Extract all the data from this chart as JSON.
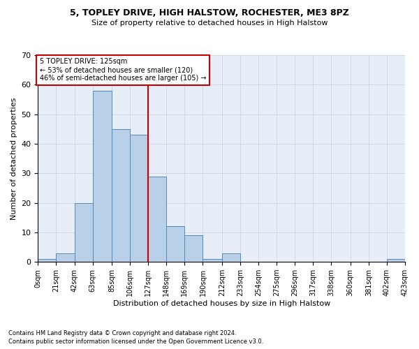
{
  "title1": "5, TOPLEY DRIVE, HIGH HALSTOW, ROCHESTER, ME3 8PZ",
  "title2": "Size of property relative to detached houses in High Halstow",
  "xlabel": "Distribution of detached houses by size in High Halstow",
  "ylabel": "Number of detached properties",
  "footnote1": "Contains HM Land Registry data © Crown copyright and database right 2024.",
  "footnote2": "Contains public sector information licensed under the Open Government Licence v3.0.",
  "annotation_line1": "5 TOPLEY DRIVE: 125sqm",
  "annotation_line2": "← 53% of detached houses are smaller (120)",
  "annotation_line3": "46% of semi-detached houses are larger (105) →",
  "vline_x": 127,
  "bar_color": "#b8d0e8",
  "bar_edge_color": "#5588bb",
  "vline_color": "#cc0000",
  "annotation_box_color": "#cc0000",
  "bin_edges": [
    0,
    21,
    42,
    63,
    85,
    106,
    127,
    148,
    169,
    190,
    212,
    233,
    254,
    275,
    296,
    317,
    338,
    360,
    381,
    402,
    423
  ],
  "bin_labels": [
    "0sqm",
    "21sqm",
    "42sqm",
    "63sqm",
    "85sqm",
    "106sqm",
    "127sqm",
    "148sqm",
    "169sqm",
    "190sqm",
    "212sqm",
    "233sqm",
    "254sqm",
    "275sqm",
    "296sqm",
    "317sqm",
    "338sqm",
    "360sqm",
    "381sqm",
    "402sqm",
    "423sqm"
  ],
  "counts": [
    1,
    3,
    20,
    58,
    45,
    43,
    29,
    12,
    9,
    1,
    3,
    0,
    0,
    0,
    0,
    0,
    0,
    0,
    0,
    1
  ],
  "ylim": [
    0,
    70
  ],
  "yticks": [
    0,
    10,
    20,
    30,
    40,
    50,
    60,
    70
  ],
  "grid_color": "#d0d8e8",
  "bg_color": "#e8eef8",
  "title1_fontsize": 9,
  "title2_fontsize": 8,
  "ylabel_fontsize": 8,
  "xlabel_fontsize": 8,
  "tick_fontsize": 7,
  "annot_fontsize": 7,
  "footnote_fontsize": 6
}
